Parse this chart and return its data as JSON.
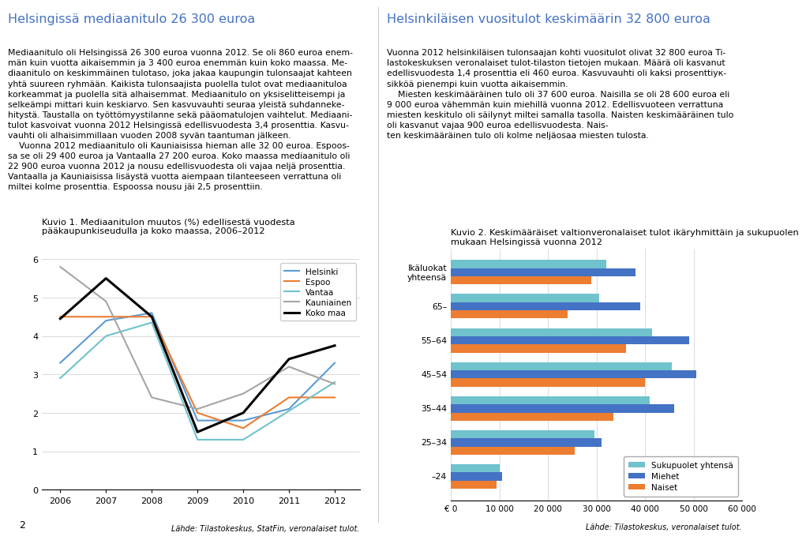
{
  "left_title": "Helsingissä mediaanitulo 26 300 euroa",
  "right_title": "Helsinkiläisen vuositulot keskimäärin 32 800 euroa",
  "fig1_title": "Kuvio 1. Mediaanitulon muutos (%) edellisestä vuodesta\npääkaupunkiseudulla ja koko maassa, 2006–2012",
  "fig1_source": "Lähde: Tilastokeskus, StatFin, veronalaiset tulot.",
  "fig1_years": [
    2006,
    2007,
    2008,
    2009,
    2010,
    2011,
    2012
  ],
  "fig1_helsinki": [
    3.3,
    4.4,
    4.6,
    1.8,
    1.8,
    2.1,
    3.3
  ],
  "fig1_espoo": [
    4.5,
    4.5,
    4.5,
    2.0,
    1.6,
    2.4,
    2.4
  ],
  "fig1_vantaa": [
    2.9,
    4.0,
    4.35,
    1.3,
    1.3,
    2.05,
    2.8
  ],
  "fig1_kauniainen": [
    5.8,
    4.9,
    2.4,
    2.1,
    2.5,
    3.2,
    2.75
  ],
  "fig1_kokomaa": [
    4.45,
    5.5,
    4.5,
    1.5,
    2.0,
    3.4,
    3.75
  ],
  "fig1_ylim": [
    0,
    6
  ],
  "fig1_yticks": [
    0,
    1,
    2,
    3,
    4,
    5,
    6
  ],
  "fig2_title": "Kuvio 2. Keskimääräiset valtionveronalaiset tulot ikäryhmittäin ja sukupuolen\nmukaan Helsingissä vuonna 2012",
  "fig2_source": "Lähde: Tilastokeskus, veronalaiset tulot.",
  "fig2_categories": [
    "Ikäluokat\nyhteensä",
    "65–",
    "55–64",
    "45–54",
    "35–44",
    "25–34",
    "–24"
  ],
  "fig2_sukupuolet": [
    32000,
    30500,
    41500,
    45500,
    41000,
    29500,
    10000
  ],
  "fig2_miehet": [
    38000,
    39000,
    49000,
    50500,
    46000,
    31000,
    10500
  ],
  "fig2_naiset": [
    29000,
    24000,
    36000,
    40000,
    33500,
    25500,
    9500
  ],
  "fig2_xlim": [
    0,
    60000
  ],
  "fig2_xticks": [
    0,
    10000,
    20000,
    30000,
    40000,
    50000,
    60000
  ],
  "color_helsinki": "#5b9bd5",
  "color_espoo": "#ed7d31",
  "color_vantaa": "#70c2cc",
  "color_kauniainen": "#a5a5a5",
  "color_kokomaa": "#000000",
  "color_sukupuolet": "#70c2cc",
  "color_miehet": "#4472c4",
  "color_naiset": "#ed7d31",
  "title_color": "#4472c4",
  "page_number": "2"
}
